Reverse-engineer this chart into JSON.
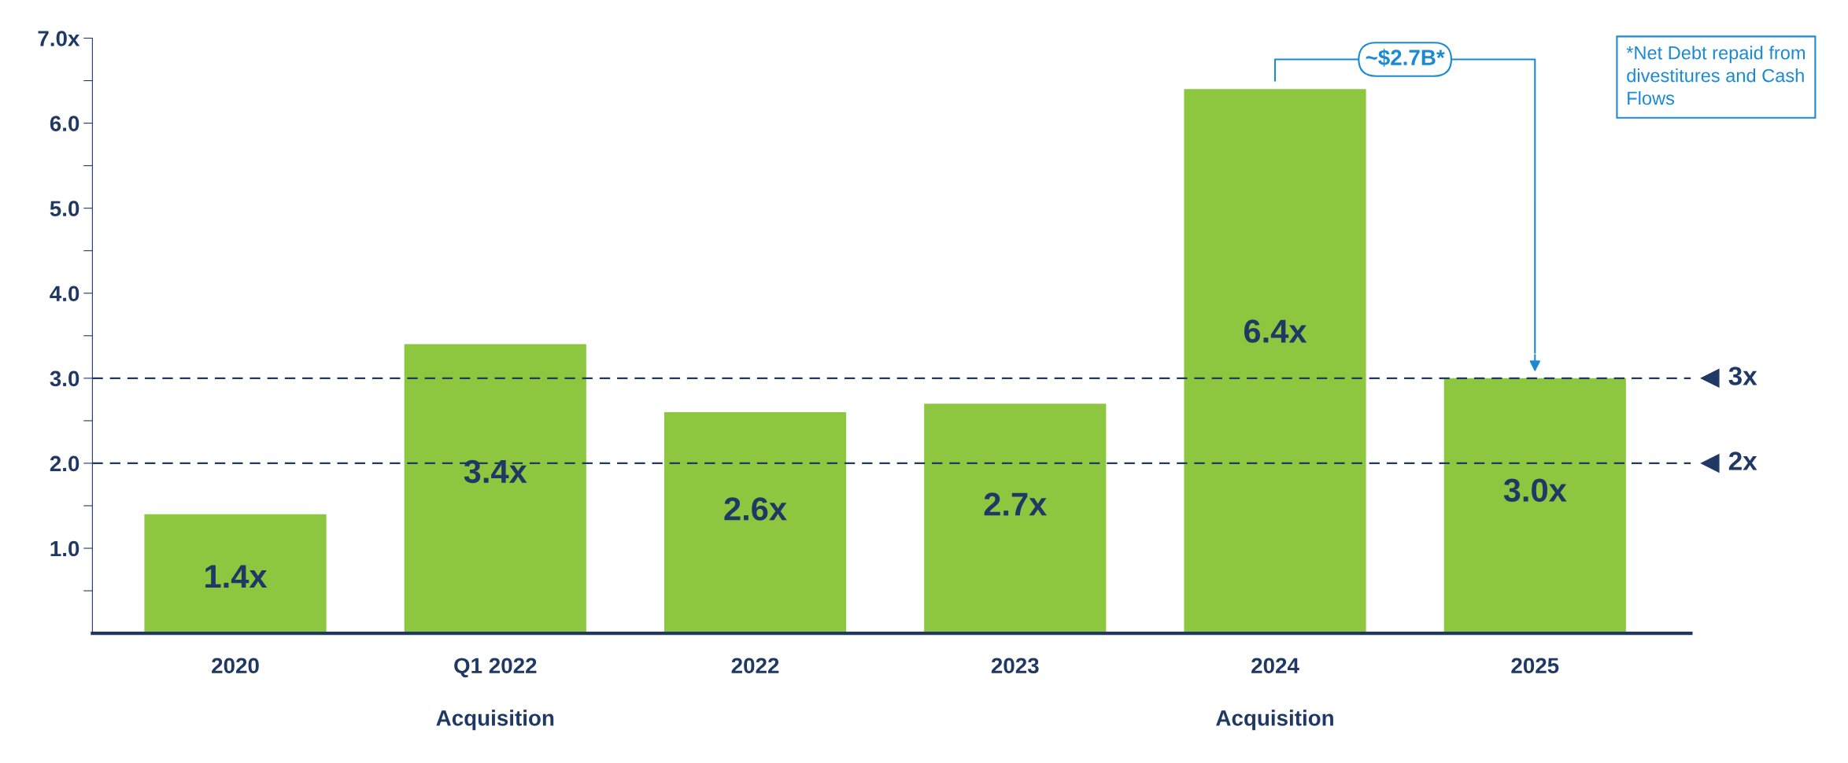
{
  "chart_data": {
    "type": "bar",
    "categories": [
      "2020",
      "Q1 2022",
      "2022",
      "2023",
      "2024",
      "2025"
    ],
    "values": [
      1.4,
      3.4,
      2.6,
      2.7,
      6.4,
      3.0
    ],
    "value_labels": [
      "1.4x",
      "3.4x",
      "2.6x",
      "2.7x",
      "6.4x",
      "3.0x"
    ],
    "color": "#8dc63f",
    "ylim": [
      0,
      7
    ],
    "yticks": [
      {
        "value": 0.5,
        "label": null
      },
      {
        "value": 1,
        "label": "1.0"
      },
      {
        "value": 1.5,
        "label": null
      },
      {
        "value": 2,
        "label": "2.0"
      },
      {
        "value": 2.5,
        "label": null
      },
      {
        "value": 3,
        "label": "3.0"
      },
      {
        "value": 3.5,
        "label": null
      },
      {
        "value": 4,
        "label": "4.0"
      },
      {
        "value": 4.5,
        "label": null
      },
      {
        "value": 5,
        "label": "5.0"
      },
      {
        "value": 5.5,
        "label": null
      },
      {
        "value": 6,
        "label": "6.0"
      },
      {
        "value": 6.5,
        "label": null
      },
      {
        "value": 7,
        "label": "7.0x"
      }
    ],
    "ref_lines": [
      {
        "axis": "y",
        "value": 3,
        "label": "3x",
        "color": "#1f3864",
        "line_style": "dashed"
      },
      {
        "axis": "y",
        "value": 2,
        "label": "2x",
        "color": "#1f3864",
        "line_style": "dashed"
      }
    ],
    "annotations": [
      "~$2.7B*",
      "*Net Debt repaid from divestitures and Cash Flows",
      "Acquisition",
      "Acquisition"
    ],
    "grid": false,
    "legend": false
  }
}
